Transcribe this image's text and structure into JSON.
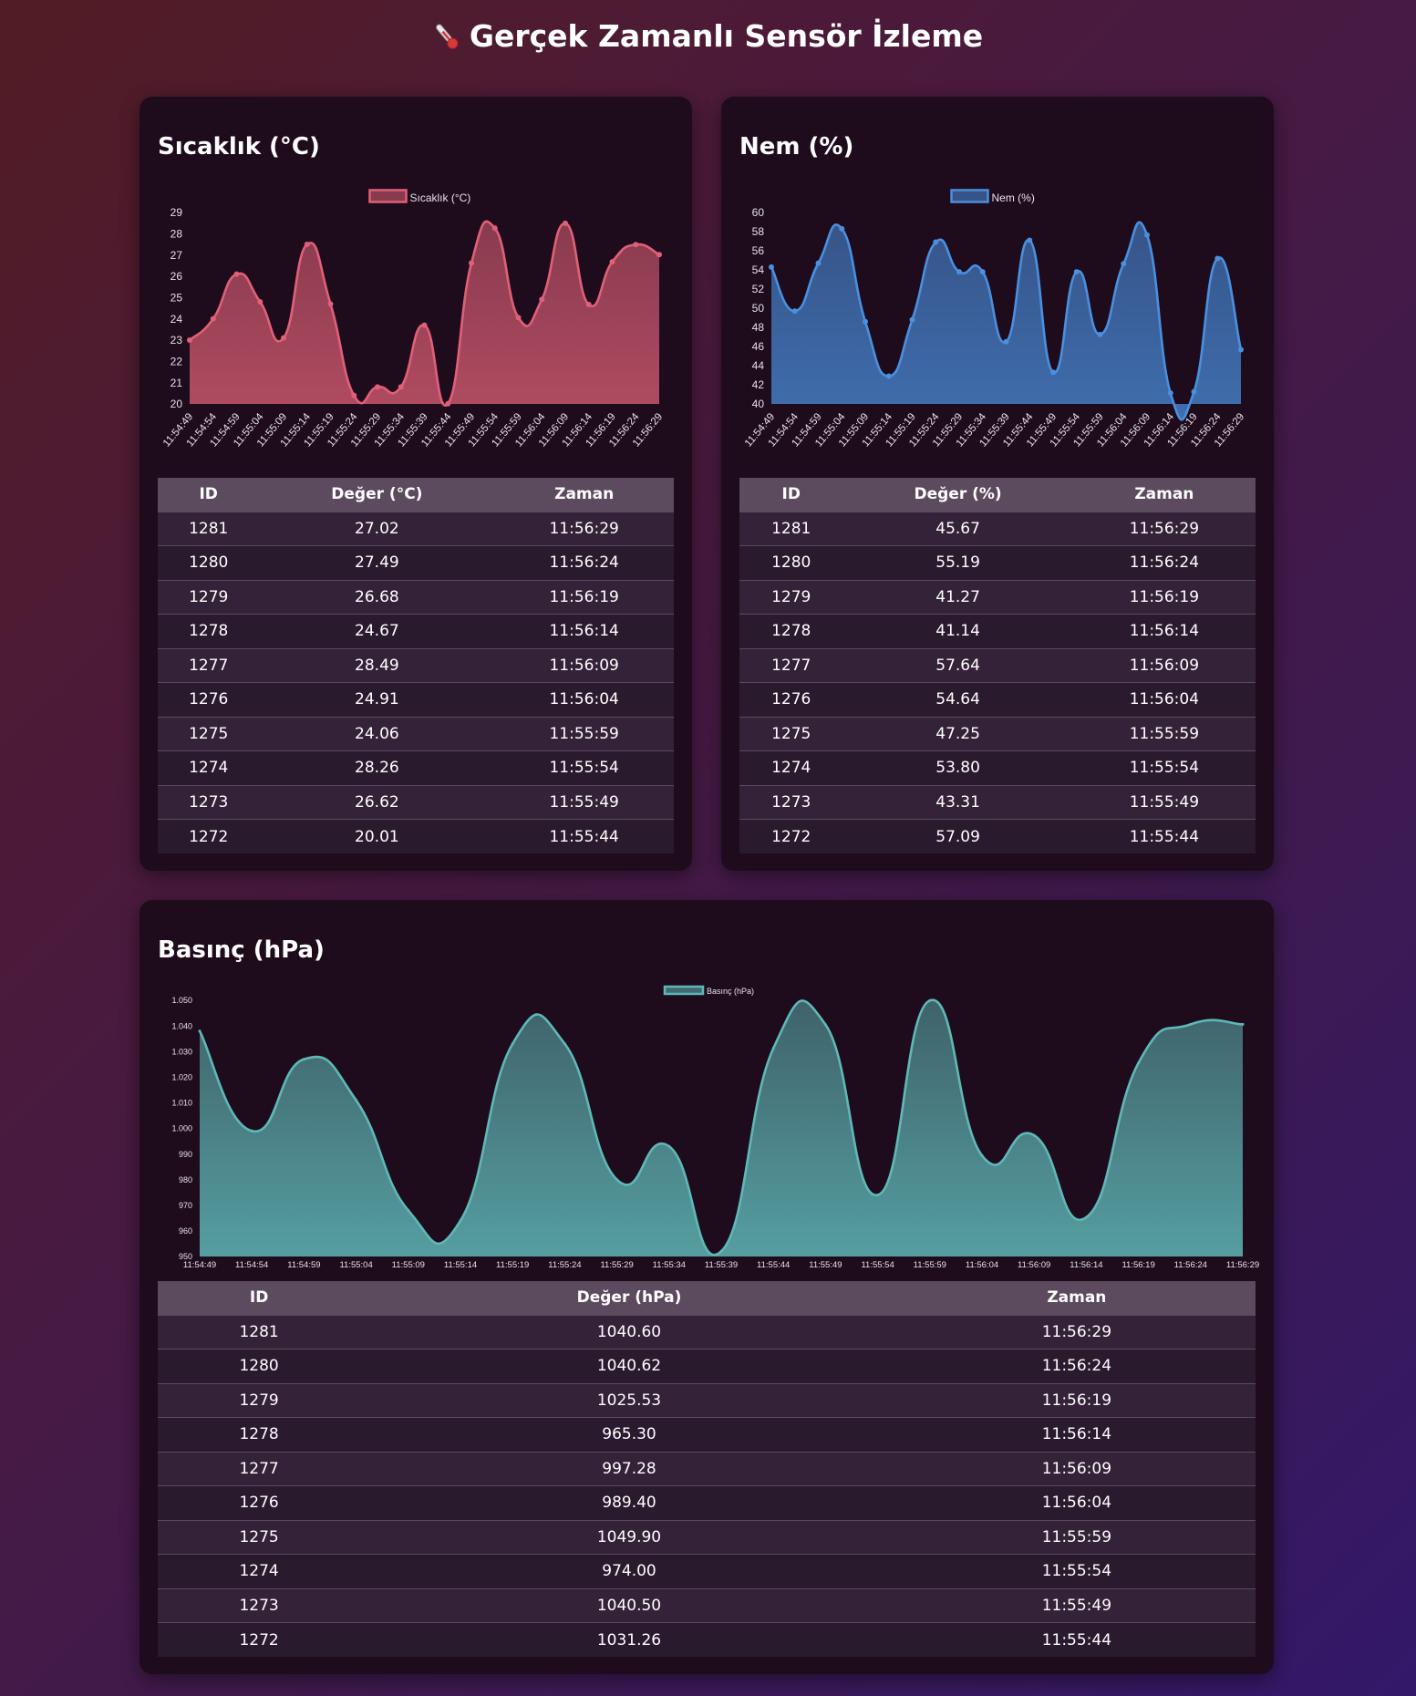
{
  "page_title": "Gerçek Zamanlı Sensör İzleme",
  "colors": {
    "temperature": "#e06078",
    "humidity": "#4a8fe0",
    "pressure": "#5fb8b8"
  },
  "times": [
    "11:54:49",
    "11:54:54",
    "11:54:59",
    "11:55:04",
    "11:55:09",
    "11:55:14",
    "11:55:19",
    "11:55:24",
    "11:55:29",
    "11:55:34",
    "11:55:39",
    "11:55:44",
    "11:55:49",
    "11:55:54",
    "11:55:59",
    "11:56:04",
    "11:56:09",
    "11:56:14",
    "11:56:19",
    "11:56:24",
    "11:56:29"
  ],
  "table_headers": {
    "id": "ID",
    "time": "Zaman"
  },
  "panels": [
    {
      "key": "temperature",
      "title": "Sıcaklık (°C)",
      "value_header": "Değer (°C)",
      "rows": [
        [
          "1281",
          "27.02",
          "11:56:29"
        ],
        [
          "1280",
          "27.49",
          "11:56:24"
        ],
        [
          "1279",
          "26.68",
          "11:56:19"
        ],
        [
          "1278",
          "24.67",
          "11:56:14"
        ],
        [
          "1277",
          "28.49",
          "11:56:09"
        ],
        [
          "1276",
          "24.91",
          "11:56:04"
        ],
        [
          "1275",
          "24.06",
          "11:55:59"
        ],
        [
          "1274",
          "28.26",
          "11:55:54"
        ],
        [
          "1273",
          "26.62",
          "11:55:49"
        ],
        [
          "1272",
          "20.01",
          "11:55:44"
        ]
      ]
    },
    {
      "key": "humidity",
      "title": "Nem (%)",
      "value_header": "Değer (%)",
      "rows": [
        [
          "1281",
          "45.67",
          "11:56:29"
        ],
        [
          "1280",
          "55.19",
          "11:56:24"
        ],
        [
          "1279",
          "41.27",
          "11:56:19"
        ],
        [
          "1278",
          "41.14",
          "11:56:14"
        ],
        [
          "1277",
          "57.64",
          "11:56:09"
        ],
        [
          "1276",
          "54.64",
          "11:56:04"
        ],
        [
          "1275",
          "47.25",
          "11:55:59"
        ],
        [
          "1274",
          "53.80",
          "11:55:54"
        ],
        [
          "1273",
          "43.31",
          "11:55:49"
        ],
        [
          "1272",
          "57.09",
          "11:55:44"
        ]
      ]
    },
    {
      "key": "pressure",
      "title": "Basınç (hPa)",
      "value_header": "Değer (hPa)",
      "rows": [
        [
          "1281",
          "1040.60",
          "11:56:29"
        ],
        [
          "1280",
          "1040.62",
          "11:56:24"
        ],
        [
          "1279",
          "1025.53",
          "11:56:19"
        ],
        [
          "1278",
          "965.30",
          "11:56:14"
        ],
        [
          "1277",
          "997.28",
          "11:56:09"
        ],
        [
          "1276",
          "989.40",
          "11:56:04"
        ],
        [
          "1275",
          "1049.90",
          "11:55:59"
        ],
        [
          "1274",
          "974.00",
          "11:55:54"
        ],
        [
          "1273",
          "1040.50",
          "11:55:49"
        ],
        [
          "1272",
          "1031.26",
          "11:55:44"
        ]
      ]
    }
  ],
  "chart_data": [
    {
      "type": "area",
      "title": "",
      "legend": "Sıcaklık (°C)",
      "legend_position": "top",
      "ylim": [
        20,
        29
      ],
      "yticks": [
        20,
        21,
        22,
        23,
        24,
        25,
        26,
        27,
        28,
        29
      ],
      "x": [
        "11:54:49",
        "11:54:54",
        "11:54:59",
        "11:55:04",
        "11:55:09",
        "11:55:14",
        "11:55:19",
        "11:55:24",
        "11:55:29",
        "11:55:34",
        "11:55:39",
        "11:55:44",
        "11:55:49",
        "11:55:54",
        "11:55:59",
        "11:56:04",
        "11:56:09",
        "11:56:14",
        "11:56:19",
        "11:56:24",
        "11:56:29"
      ],
      "series": [
        {
          "name": "Sıcaklık (°C)",
          "values": [
            23.0,
            24.0,
            26.1,
            24.8,
            23.1,
            27.5,
            24.7,
            20.4,
            20.8,
            20.8,
            23.7,
            20.01,
            26.62,
            28.26,
            24.06,
            24.91,
            28.49,
            24.67,
            26.68,
            27.49,
            27.02
          ]
        }
      ]
    },
    {
      "type": "area",
      "title": "",
      "legend": "Nem (%)",
      "legend_position": "top",
      "ylim": [
        40,
        60
      ],
      "yticks": [
        40,
        42,
        44,
        46,
        48,
        50,
        52,
        54,
        56,
        58,
        60
      ],
      "x": [
        "11:54:49",
        "11:54:54",
        "11:54:59",
        "11:55:04",
        "11:55:09",
        "11:55:14",
        "11:55:19",
        "11:55:24",
        "11:55:29",
        "11:55:34",
        "11:55:39",
        "11:55:44",
        "11:55:49",
        "11:55:54",
        "11:55:59",
        "11:56:04",
        "11:56:09",
        "11:56:14",
        "11:56:19",
        "11:56:24",
        "11:56:29"
      ],
      "series": [
        {
          "name": "Nem (%)",
          "values": [
            54.3,
            49.7,
            54.7,
            58.3,
            48.6,
            42.9,
            48.8,
            56.9,
            53.8,
            53.8,
            46.5,
            57.09,
            43.31,
            53.8,
            47.25,
            54.64,
            57.64,
            41.14,
            41.27,
            55.19,
            45.67
          ]
        }
      ]
    },
    {
      "type": "area",
      "title": "",
      "legend": "Basınç (hPa)",
      "legend_position": "top",
      "ylim": [
        950,
        1050
      ],
      "yticks": [
        950,
        960,
        970,
        980,
        990,
        1000,
        1010,
        1020,
        1030,
        1040,
        1050
      ],
      "ytick_labels": [
        "950",
        "960",
        "970",
        "980",
        "990",
        "1.000",
        "1.010",
        "1.020",
        "1.030",
        "1.040",
        "1.050"
      ],
      "x": [
        "11:54:49",
        "11:54:54",
        "11:54:59",
        "11:55:04",
        "11:55:09",
        "11:55:14",
        "11:55:19",
        "11:55:24",
        "11:55:29",
        "11:55:34",
        "11:55:39",
        "11:55:44",
        "11:55:49",
        "11:55:54",
        "11:55:59",
        "11:56:04",
        "11:56:09",
        "11:56:14",
        "11:56:19",
        "11:56:24",
        "11:56:29"
      ],
      "series": [
        {
          "name": "Basınç (hPa)",
          "values": [
            1038,
            999,
            1027,
            1011,
            968,
            964,
            1033,
            1033,
            980,
            993,
            952,
            1031.26,
            1040.5,
            974.0,
            1049.9,
            989.4,
            997.28,
            965.3,
            1025.53,
            1040.62,
            1040.6
          ]
        }
      ]
    }
  ]
}
